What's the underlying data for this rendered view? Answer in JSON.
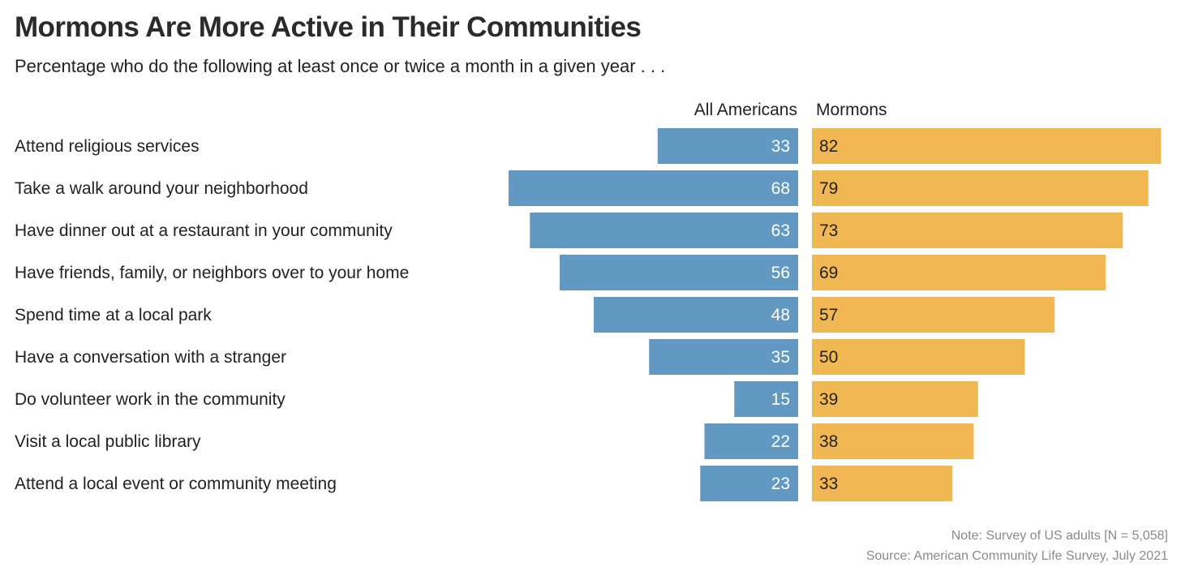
{
  "title": "Mormons Are More Active in Their Communities",
  "subtitle": "Percentage who do the following at least once or twice a month in a given year  . . .",
  "note": "Note: Survey of US adults [N = 5,058]",
  "source": "Source: American Community Life Survey, July 2021",
  "colors": {
    "all_americans": "#6199c3",
    "mormons": "#f0b752",
    "left_value_text": "#ffffff",
    "right_value_text": "#222222"
  },
  "chart_data": {
    "type": "bar",
    "orientation": "horizontal-diverging",
    "categories": [
      "Attend religious services",
      "Take a walk around your neighborhood",
      "Have dinner out at a restaurant in your community",
      "Have friends, family, or neighbors over to your home",
      "Spend time at a local park",
      "Have a conversation with a stranger",
      "Do volunteer work in the community",
      "Visit a local public library",
      "Attend a local event or community meeting"
    ],
    "series": [
      {
        "name": "All Americans",
        "values": [
          33,
          68,
          63,
          56,
          48,
          35,
          15,
          22,
          23
        ]
      },
      {
        "name": "Mormons",
        "values": [
          82,
          79,
          73,
          69,
          57,
          50,
          39,
          38,
          33
        ]
      }
    ],
    "xlim": [
      0,
      100
    ],
    "grid": false,
    "legend": "top (column headers)"
  }
}
